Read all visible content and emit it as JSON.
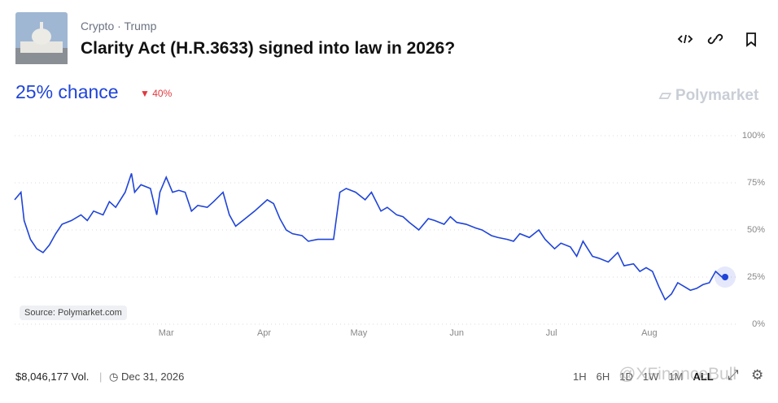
{
  "header": {
    "breadcrumb": [
      "Crypto",
      "Trump"
    ],
    "title": "Clarity Act (H.R.3633) signed into law in 2026?",
    "chance": "25% chance",
    "change": "40%",
    "brand": "Polymarket"
  },
  "chart_data": {
    "type": "line",
    "color": "#1f44d9",
    "source": "Source: Polymarket.com",
    "x": [
      12,
      14,
      15,
      17,
      19,
      21,
      23,
      25,
      27,
      30,
      33,
      35,
      37,
      40,
      42,
      44,
      47,
      49,
      50,
      52,
      55,
      57,
      58,
      60,
      62,
      64,
      66,
      68,
      70,
      73,
      75,
      78,
      80,
      82,
      85,
      88,
      92,
      94,
      96,
      98,
      100,
      103,
      105,
      108,
      110,
      113,
      115,
      117,
      120,
      123,
      125,
      128,
      130,
      133,
      135,
      137,
      140,
      143,
      145,
      148,
      150,
      152,
      155,
      158,
      160,
      163,
      165,
      168,
      170,
      172,
      175,
      178,
      180,
      183,
      185,
      188,
      190,
      192,
      195,
      197,
      200,
      203,
      205,
      208,
      210,
      212,
      214,
      216,
      218,
      220,
      222,
      224,
      226,
      228,
      230,
      232,
      234,
      236,
      237
    ],
    "values": [
      66,
      70,
      55,
      45,
      40,
      38,
      42,
      48,
      53,
      55,
      58,
      55,
      60,
      58,
      65,
      62,
      70,
      80,
      70,
      74,
      72,
      58,
      70,
      78,
      70,
      71,
      70,
      60,
      63,
      62,
      65,
      70,
      58,
      52,
      56,
      60,
      66,
      64,
      56,
      50,
      48,
      47,
      44,
      45,
      45,
      45,
      70,
      72,
      70,
      66,
      70,
      60,
      62,
      58,
      57,
      54,
      50,
      56,
      55,
      53,
      57,
      54,
      53,
      51,
      50,
      47,
      46,
      45,
      44,
      48,
      46,
      50,
      45,
      40,
      43,
      41,
      36,
      44,
      36,
      35,
      33,
      38,
      31,
      32,
      28,
      30,
      28,
      20,
      13,
      16,
      22,
      20,
      18,
      19,
      21,
      22,
      28,
      25,
      25
    ],
    "xlim": [
      12,
      237
    ],
    "ylim": [
      0,
      100
    ],
    "xticks": [
      {
        "value": 60,
        "label": "Mar"
      },
      {
        "value": 91,
        "label": "Apr"
      },
      {
        "value": 121,
        "label": "May"
      },
      {
        "value": 152,
        "label": "Jun"
      },
      {
        "value": 182,
        "label": "Jul"
      },
      {
        "value": 213,
        "label": "Aug"
      }
    ],
    "yticks": [
      {
        "value": 100,
        "label": "100%"
      },
      {
        "value": 75,
        "label": "75%"
      },
      {
        "value": 50,
        "label": "50%"
      },
      {
        "value": 25,
        "label": "25%"
      },
      {
        "value": 0,
        "label": "0%"
      }
    ],
    "grid": true
  },
  "footer": {
    "volume": "$8,046,177 Vol.",
    "end_date": "Dec 31, 2026",
    "ranges": [
      "1H",
      "6H",
      "1D",
      "1W",
      "1M",
      "ALL"
    ],
    "watermark": "@XFinanceBull"
  }
}
